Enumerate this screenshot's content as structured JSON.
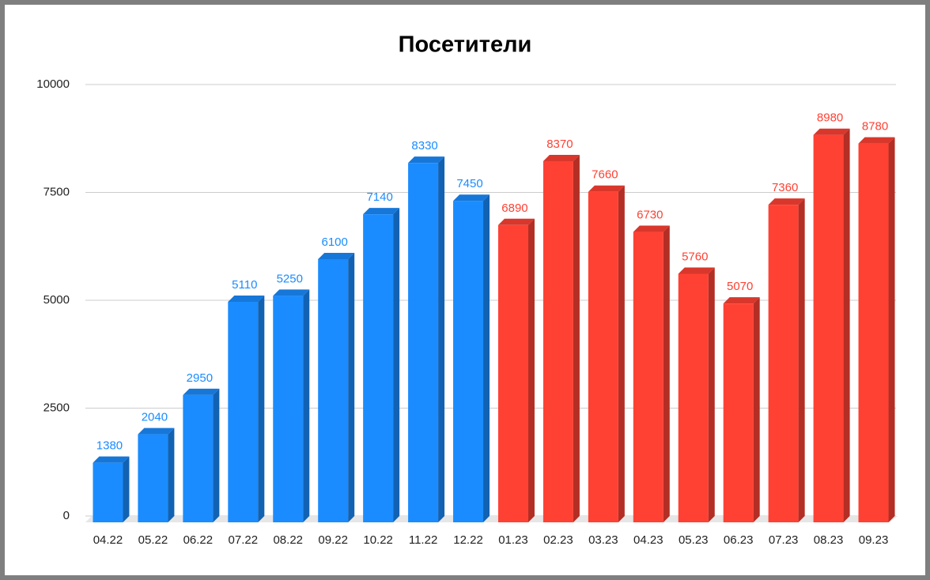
{
  "chart_data": {
    "type": "bar3d",
    "title": "Посетители",
    "categories": [
      "04.22",
      "05.22",
      "06.22",
      "07.22",
      "08.22",
      "09.22",
      "10.22",
      "11.22",
      "12.22",
      "01.23",
      "02.23",
      "03.23",
      "04.23",
      "05.23",
      "06.23",
      "07.23",
      "08.23",
      "09.23"
    ],
    "values": [
      1380,
      2040,
      2950,
      5110,
      5250,
      6100,
      7140,
      8330,
      7450,
      6890,
      8370,
      7660,
      6730,
      5760,
      5070,
      7360,
      8980,
      8780
    ],
    "colors": [
      "#1a8cff",
      "#1a8cff",
      "#1a8cff",
      "#1a8cff",
      "#1a8cff",
      "#1a8cff",
      "#1a8cff",
      "#1a8cff",
      "#1a8cff",
      "#ff4133",
      "#ff4133",
      "#ff4133",
      "#ff4133",
      "#ff4133",
      "#ff4133",
      "#ff4133",
      "#ff4133",
      "#ff4133"
    ],
    "ylim": [
      0,
      10000
    ],
    "yticks": [
      0,
      2500,
      5000,
      7500,
      10000
    ],
    "grid": true
  }
}
